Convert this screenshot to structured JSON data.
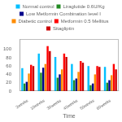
{
  "chart_data": {
    "type": "bar",
    "xlabel": "Time",
    "categories": [
      "2weeks",
      "10weeks",
      "30weeks",
      "40weeks",
      "50weeks",
      "60weeks"
    ],
    "series": [
      {
        "name": "Normal control",
        "color": "#00BFFF",
        "values": [
          55,
          90,
          82,
          65,
          60,
          58
        ]
      },
      {
        "name": "Liraglutide 0.6U/Kg",
        "color": "#228B22",
        "values": [
          18,
          44,
          32,
          26,
          14,
          20
        ]
      },
      {
        "name": "Low Metformin Combination level I",
        "color": "#00008B",
        "values": [
          22,
          56,
          40,
          30,
          18,
          26
        ]
      },
      {
        "name": "Diabetic control",
        "color": "#FF8C00",
        "values": [
          42,
          65,
          52,
          46,
          40,
          38
        ]
      },
      {
        "name": "Metformin 0.5 Mellitus",
        "color": "#FF0000",
        "values": [
          63,
          108,
          90,
          72,
          60,
          65
        ]
      },
      {
        "name": "Sitagliptin",
        "color": "#CC0000",
        "values": [
          60,
          96,
          82,
          68,
          58,
          52
        ]
      }
    ],
    "ylim": [
      0,
      125
    ],
    "yticks": [
      0,
      20,
      40,
      60,
      80,
      100
    ],
    "grid": false,
    "legend": "top"
  }
}
